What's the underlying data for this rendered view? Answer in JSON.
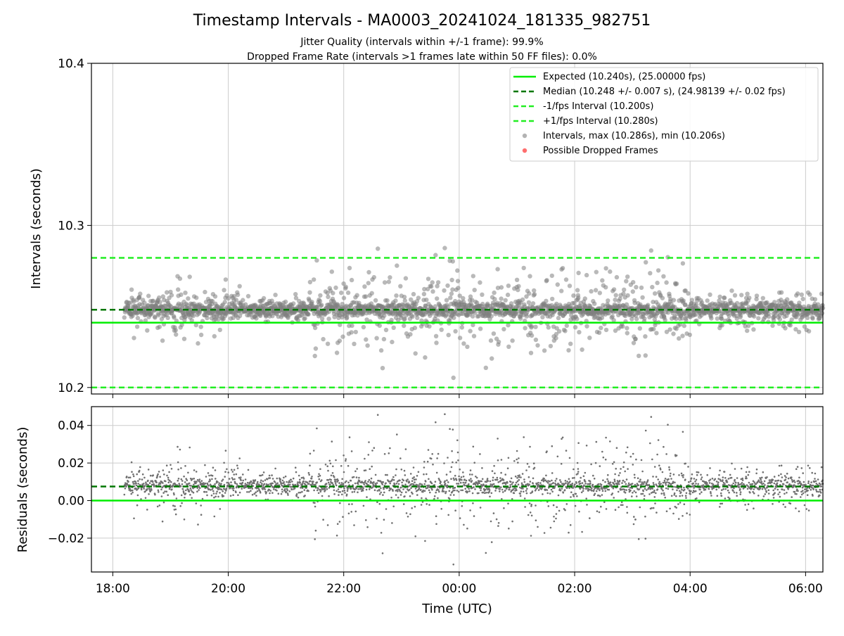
{
  "figure": {
    "title": "Timestamp Intervals - MA0003_20241024_181335_982751",
    "subtitle_1": "Jitter Quality (intervals within +/-1 frame): 99.9%",
    "subtitle_2": "Dropped Frame Rate (intervals >1 frames late within 50 FF files): 0.0%"
  },
  "colors": {
    "expected": "#00ee00",
    "median": "#007700",
    "bounds": "#22ee22",
    "points": "#808080",
    "dropped": "#ff5555",
    "grid": "#cccccc"
  },
  "chart_data": [
    {
      "type": "scatter",
      "panel": "intervals",
      "ylabel": "Intervals (seconds)",
      "xlabel": "",
      "ylim": [
        10.196,
        10.4
      ],
      "yticks": [
        10.2,
        10.3,
        10.4
      ],
      "ytick_labels": [
        "10.2",
        "10.3",
        "10.4"
      ],
      "xlim_hours": [
        17.63,
        30.3
      ],
      "xticks_hours": [
        18,
        20,
        22,
        24,
        26,
        28,
        30
      ],
      "xtick_labels": [
        "18:00",
        "20:00",
        "22:00",
        "00:00",
        "02:00",
        "04:00",
        "06:00"
      ],
      "grid": true,
      "legend_position": "top-right",
      "reference_lines": [
        {
          "name": "Expected (10.240s), (25.00000 fps)",
          "value": 10.24,
          "style": "solid",
          "color": "#00ee00"
        },
        {
          "name": "Median (10.248 +/- 0.007 s), (24.98139 +/- 0.02 fps)",
          "value": 10.248,
          "style": "dashed",
          "color": "#007700"
        },
        {
          "name": "-1/fps Interval (10.200s)",
          "value": 10.2,
          "style": "dashed",
          "color": "#22ee22"
        },
        {
          "name": "+1/fps Interval (10.280s)",
          "value": 10.28,
          "style": "dashed",
          "color": "#22ee22"
        }
      ],
      "series": [
        {
          "name": "Intervals, max (10.286s), min (10.206s)",
          "marker": "circle",
          "color": "#808080",
          "median": 10.248,
          "max": 10.286,
          "min": 10.206,
          "x_start_hours": 18.2,
          "x_end_hours": 30.3
        },
        {
          "name": "Possible Dropped Frames",
          "marker": "circle",
          "color": "#ff5555",
          "count": 0
        }
      ],
      "noise_profile": [
        {
          "from_hours": 18.2,
          "to_hours": 18.3,
          "spread": 0.007
        },
        {
          "from_hours": 18.3,
          "to_hours": 19.6,
          "spread": 0.013
        },
        {
          "from_hours": 19.6,
          "to_hours": 20.2,
          "spread": 0.011
        },
        {
          "from_hours": 20.2,
          "to_hours": 21.4,
          "spread": 0.006
        },
        {
          "from_hours": 21.4,
          "to_hours": 28.0,
          "spread": 0.019
        },
        {
          "from_hours": 28.0,
          "to_hours": 30.3,
          "spread": 0.009
        }
      ]
    },
    {
      "type": "scatter",
      "panel": "residuals",
      "ylabel": "Residuals (seconds)",
      "xlabel": "Time (UTC)",
      "ylim": [
        -0.038,
        0.05
      ],
      "yticks": [
        -0.02,
        0.0,
        0.02,
        0.04
      ],
      "ytick_labels": [
        "−0.02",
        "0.00",
        "0.02",
        "0.04"
      ],
      "xlim_hours": [
        17.63,
        30.3
      ],
      "xticks_hours": [
        18,
        20,
        22,
        24,
        26,
        28,
        30
      ],
      "xtick_labels": [
        "18:00",
        "20:00",
        "22:00",
        "00:00",
        "02:00",
        "04:00",
        "06:00"
      ],
      "grid": true,
      "reference_lines": [
        {
          "value": 0.0,
          "style": "solid",
          "color": "#00ee00"
        },
        {
          "value": 0.0075,
          "style": "dashed",
          "color": "#007700"
        }
      ],
      "series": [
        {
          "name": "Residuals",
          "marker": "dot",
          "color": "#707070",
          "median": 0.0075,
          "max": 0.046,
          "min": -0.034
        }
      ]
    }
  ]
}
